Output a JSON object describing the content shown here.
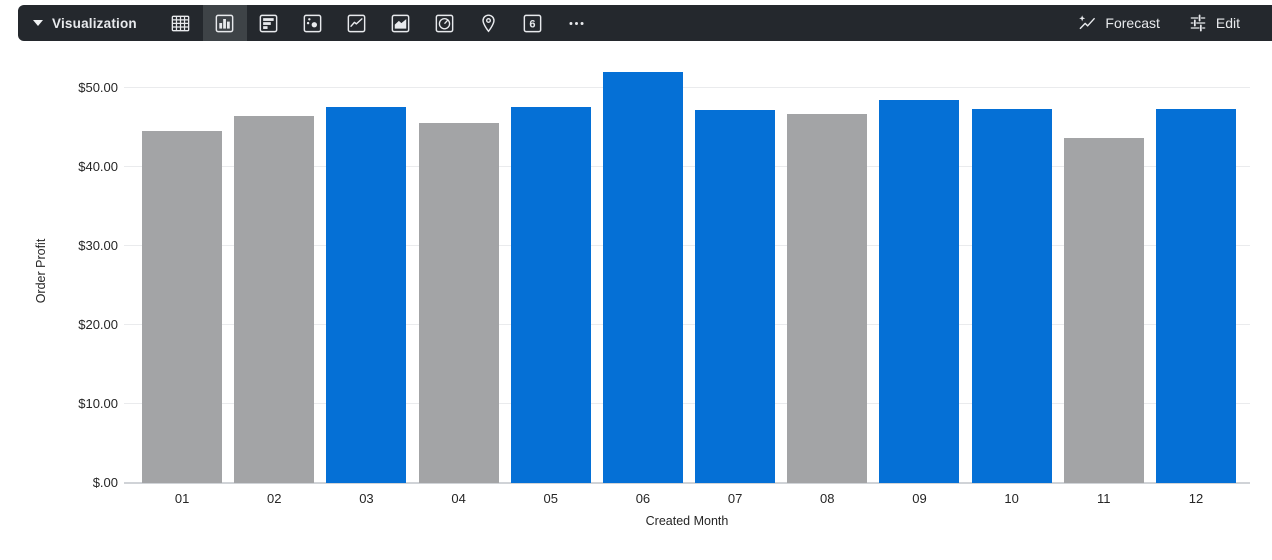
{
  "toolbar": {
    "title": "Visualization",
    "colors": {
      "background": "#24282d",
      "selected_background": "#3e4347",
      "icon": "#e8eaed"
    },
    "chart_types": [
      {
        "icon": "table-icon",
        "selected": false
      },
      {
        "icon": "column-chart-icon",
        "selected": true
      },
      {
        "icon": "bar-chart-icon",
        "selected": false
      },
      {
        "icon": "scatter-chart-icon",
        "selected": false
      },
      {
        "icon": "line-chart-icon",
        "selected": false
      },
      {
        "icon": "area-chart-icon",
        "selected": false
      },
      {
        "icon": "pie-chart-icon",
        "selected": false
      },
      {
        "icon": "map-pin-icon",
        "selected": false
      },
      {
        "icon": "single-value-icon",
        "selected": false,
        "glyph": "6"
      },
      {
        "icon": "more-icon",
        "selected": false
      }
    ],
    "forecast_label": "Forecast",
    "edit_label": "Edit"
  },
  "chart_data": {
    "type": "bar",
    "title": "",
    "xlabel": "Created Month",
    "ylabel": "Order Profit",
    "categories": [
      "01",
      "02",
      "03",
      "04",
      "05",
      "06",
      "07",
      "08",
      "09",
      "10",
      "11",
      "12"
    ],
    "values": [
      44.6,
      46.5,
      47.6,
      45.6,
      47.6,
      52.0,
      47.2,
      46.7,
      48.5,
      47.3,
      43.7,
      47.3
    ],
    "bar_colors": [
      "gray",
      "gray",
      "blue",
      "gray",
      "blue",
      "blue",
      "blue",
      "gray",
      "blue",
      "blue",
      "gray",
      "blue"
    ],
    "palette": {
      "blue": "#0570d6",
      "gray": "#a3a4a6"
    },
    "y_ticks": [
      {
        "value": 0,
        "label": "$.00"
      },
      {
        "value": 10,
        "label": "$10.00"
      },
      {
        "value": 20,
        "label": "$20.00"
      },
      {
        "value": 30,
        "label": "$30.00"
      },
      {
        "value": 40,
        "label": "$40.00"
      },
      {
        "value": 50,
        "label": "$50.00"
      }
    ],
    "ylim": [
      0,
      52.5
    ],
    "grid": true,
    "legend": "none"
  }
}
